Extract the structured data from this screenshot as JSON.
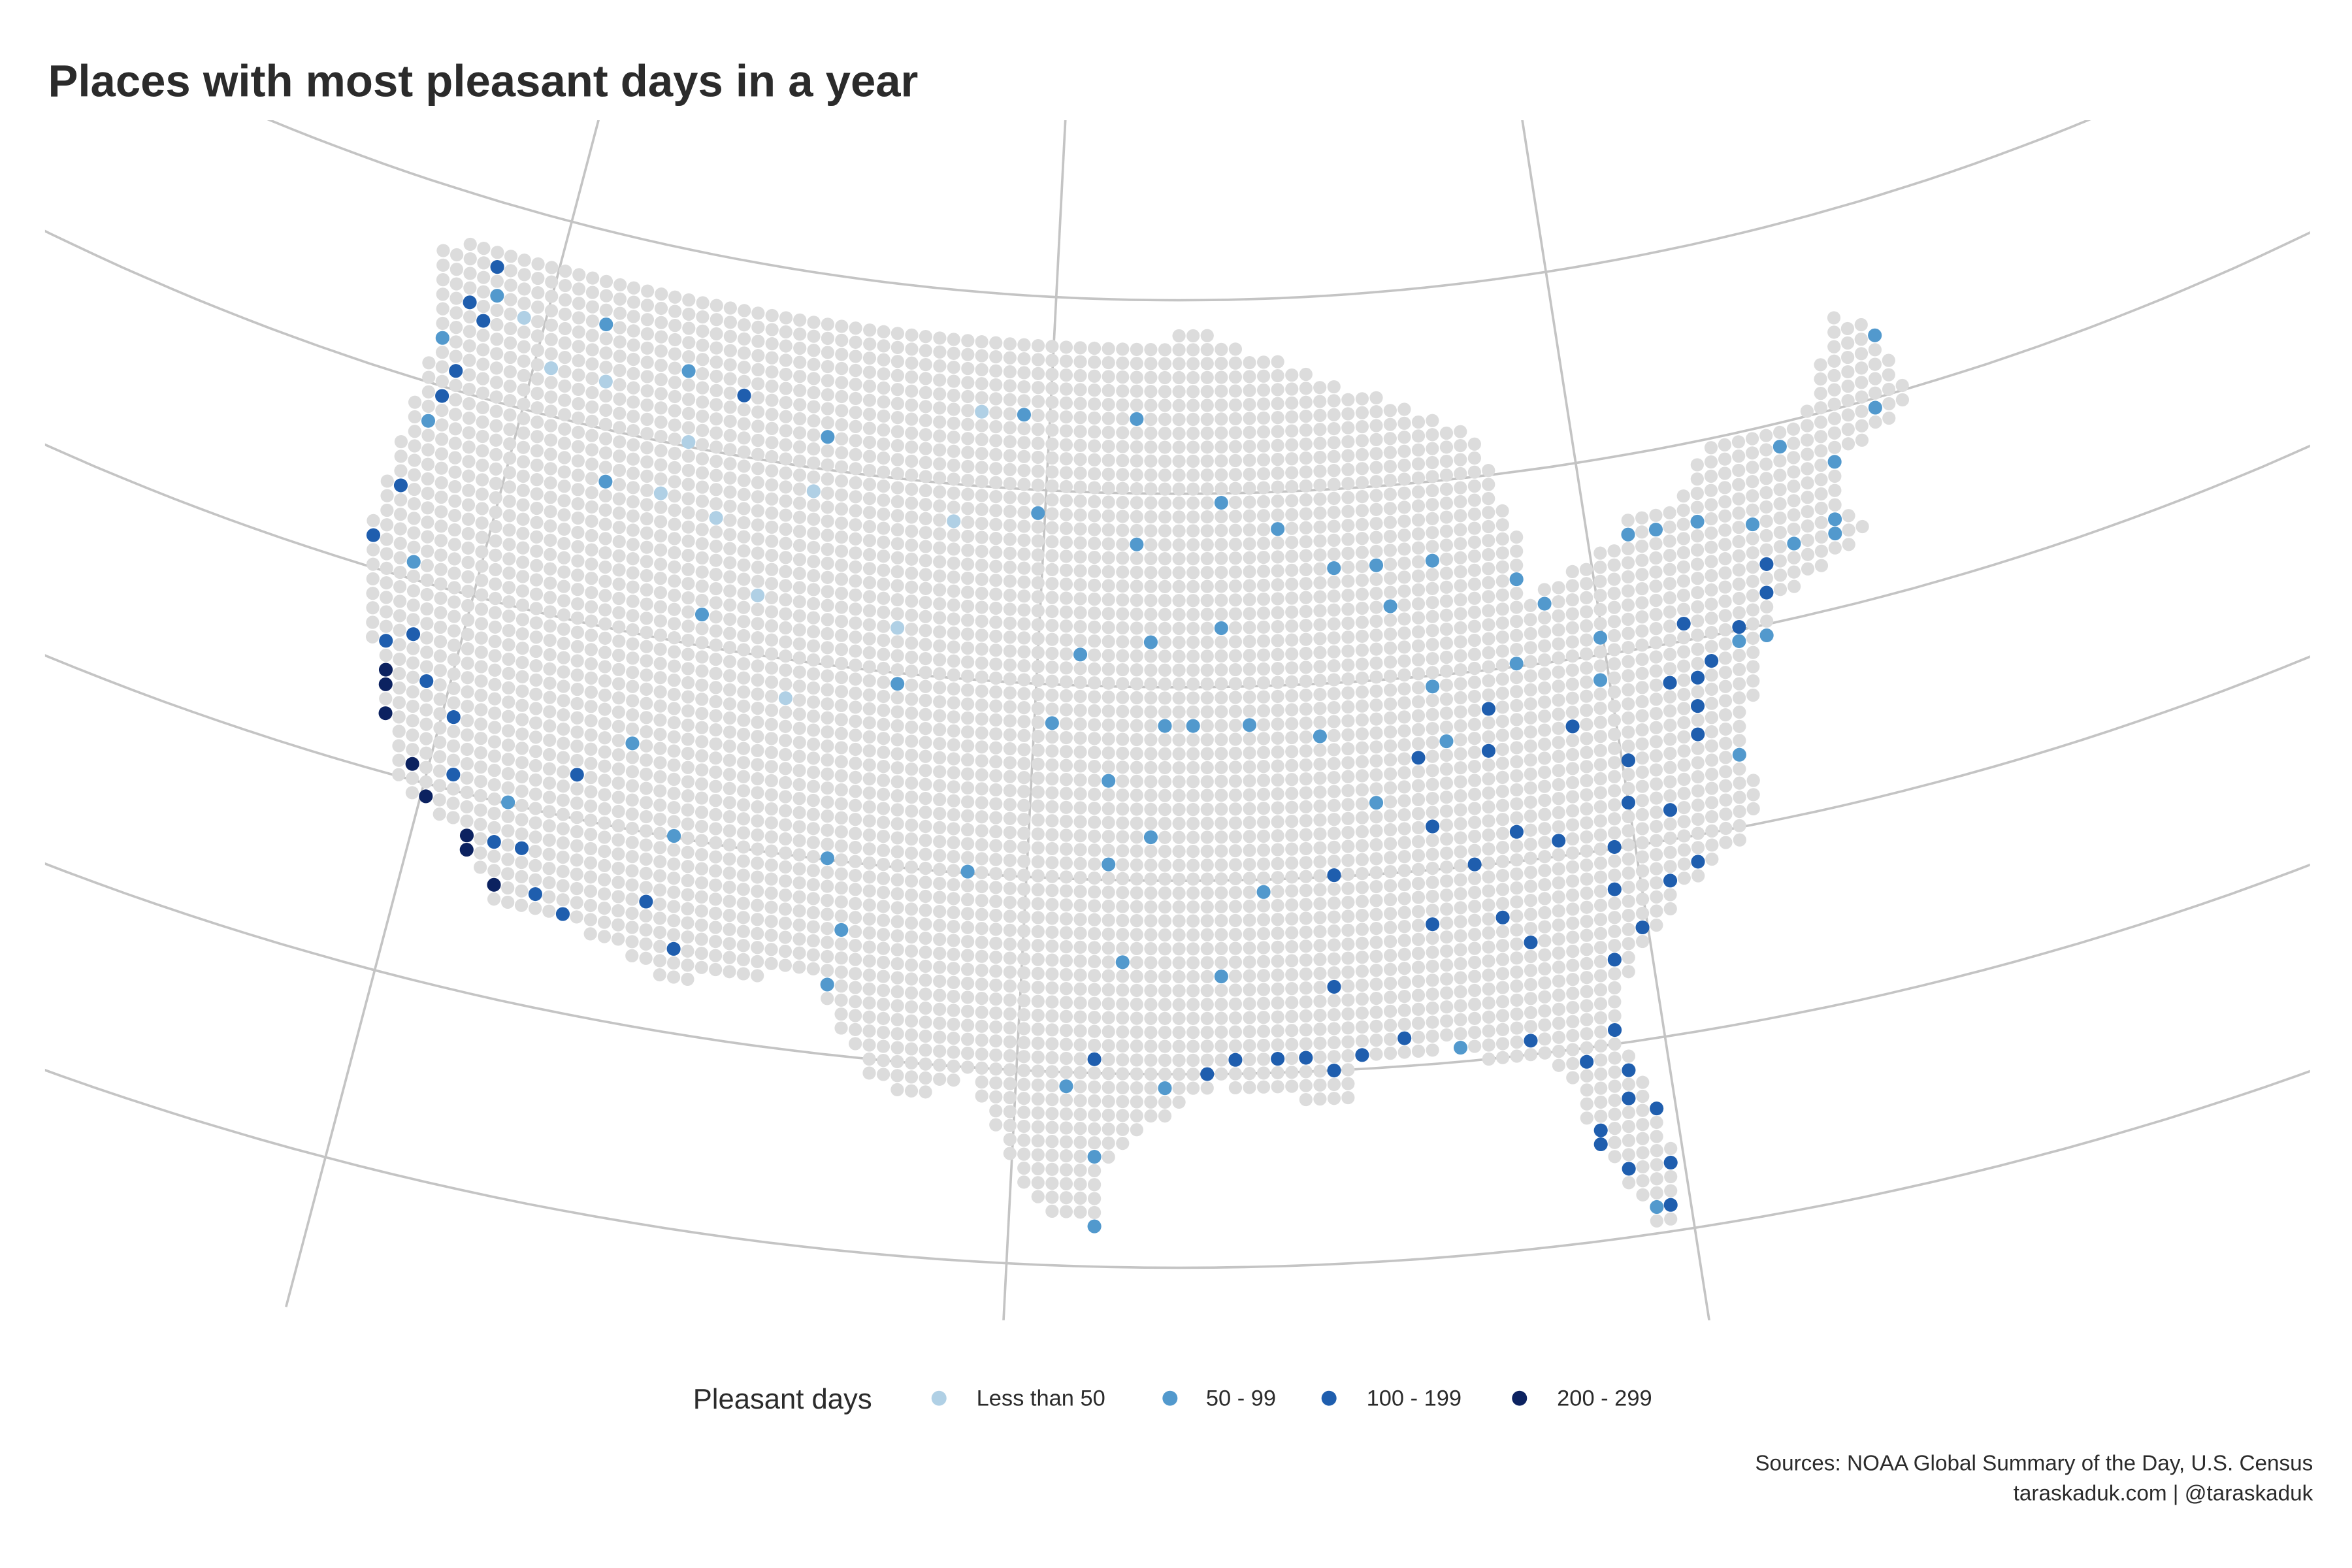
{
  "chart_data": {
    "type": "scatter",
    "title": "Places with most pleasant days in a year",
    "projection": "conic",
    "legend": {
      "title": "Pleasant days",
      "placement": "bottom",
      "categories": [
        {
          "label": "Less than 50",
          "color": "#b0d0e5"
        },
        {
          "label": "50 - 99",
          "color": "#5299cd"
        },
        {
          "label": "100 - 199",
          "color": "#1f5eae"
        },
        {
          "label": "200 - 299",
          "color": "#0c2260"
        }
      ]
    },
    "background_color": "#dcdcdc",
    "graticule": {
      "meridians": [
        -120,
        -100,
        -80
      ],
      "parallels": [
        25,
        30,
        35,
        40,
        45,
        50
      ]
    },
    "points_format": [
      "lon",
      "lat",
      "category_index"
    ],
    "points": [
      [
        -123.0,
        47.5,
        2
      ],
      [
        -122.3,
        47.6,
        1
      ],
      [
        -122.6,
        48.4,
        2
      ],
      [
        -122.3,
        46.8,
        2
      ],
      [
        -123.9,
        46.2,
        1
      ],
      [
        -122.7,
        45.5,
        2
      ],
      [
        -123.0,
        44.9,
        2
      ],
      [
        -123.1,
        44.0,
        1
      ],
      [
        -123.4,
        42.4,
        2
      ],
      [
        -124.1,
        40.8,
        2
      ],
      [
        -122.3,
        40.6,
        1
      ],
      [
        -121.5,
        38.6,
        2
      ],
      [
        -122.3,
        38.3,
        2
      ],
      [
        -122.4,
        37.7,
        3
      ],
      [
        -122.0,
        37.3,
        3
      ],
      [
        -121.9,
        36.6,
        3
      ],
      [
        -121.0,
        37.6,
        2
      ],
      [
        -119.8,
        36.8,
        2
      ],
      [
        -120.6,
        35.3,
        3
      ],
      [
        -119.7,
        34.4,
        3
      ],
      [
        -118.4,
        34.0,
        3
      ],
      [
        -118.1,
        34.1,
        3
      ],
      [
        -117.9,
        33.7,
        3
      ],
      [
        -117.2,
        32.8,
        3
      ],
      [
        -116.9,
        33.0,
        3
      ],
      [
        -117.3,
        34.1,
        2
      ],
      [
        -116.5,
        33.8,
        2
      ],
      [
        -115.6,
        32.8,
        2
      ],
      [
        -119.0,
        35.4,
        2
      ],
      [
        -117.0,
        35.0,
        1
      ],
      [
        -116.2,
        43.6,
        1
      ],
      [
        -114.0,
        46.9,
        1
      ],
      [
        -112.0,
        46.6,
        2
      ],
      [
        -111.9,
        40.8,
        1
      ],
      [
        -111.7,
        35.2,
        1
      ],
      [
        -112.0,
        33.4,
        2
      ],
      [
        -110.9,
        32.2,
        2
      ],
      [
        -114.6,
        32.7,
        2
      ],
      [
        -115.2,
        36.1,
        2
      ],
      [
        -106.6,
        35.1,
        1
      ],
      [
        -106.4,
        31.8,
        1
      ],
      [
        -104.8,
        39.7,
        1
      ],
      [
        -108.5,
        45.8,
        1
      ],
      [
        -104.8,
        41.1,
        0
      ],
      [
        -113.6,
        37.1,
        1
      ],
      [
        -117.4,
        47.7,
        1
      ],
      [
        -119.5,
        46.2,
        0
      ],
      [
        -110.0,
        41.5,
        0
      ],
      [
        -105.9,
        33.4,
        1
      ],
      [
        -103.2,
        44.1,
        0
      ],
      [
        -100.8,
        46.8,
        1
      ],
      [
        -96.8,
        46.9,
        1
      ],
      [
        -101.7,
        35.2,
        1
      ],
      [
        -97.5,
        35.4,
        1
      ],
      [
        -95.9,
        36.1,
        1
      ],
      [
        -97.4,
        27.8,
        1
      ],
      [
        -97.5,
        26.2,
        1
      ],
      [
        -98.5,
        29.5,
        1
      ],
      [
        -97.7,
        30.3,
        2
      ],
      [
        -96.8,
        32.8,
        1
      ],
      [
        -95.4,
        29.8,
        1
      ],
      [
        -94.0,
        30.1,
        2
      ],
      [
        -93.2,
        30.2,
        2
      ],
      [
        -92.0,
        30.2,
        2
      ],
      [
        -90.1,
        29.9,
        2
      ],
      [
        -91.1,
        30.5,
        2
      ],
      [
        -89.3,
        30.4,
        2
      ],
      [
        -88.0,
        30.7,
        2
      ],
      [
        -86.5,
        30.4,
        1
      ],
      [
        -84.3,
        30.4,
        2
      ],
      [
        -93.8,
        32.5,
        1
      ],
      [
        -92.2,
        34.7,
        1
      ],
      [
        -90.2,
        32.3,
        2
      ],
      [
        -86.8,
        33.5,
        2
      ],
      [
        -84.4,
        33.7,
        2
      ],
      [
        -83.6,
        32.8,
        2
      ],
      [
        -81.2,
        32.1,
        2
      ],
      [
        -80.0,
        32.8,
        2
      ],
      [
        -81.0,
        34.0,
        2
      ],
      [
        -79.0,
        33.8,
        2
      ],
      [
        -77.9,
        34.3,
        2
      ],
      [
        -80.3,
        25.8,
        2
      ],
      [
        -80.1,
        26.6,
        2
      ],
      [
        -81.8,
        26.6,
        2
      ],
      [
        -82.5,
        27.9,
        2
      ],
      [
        -81.3,
        28.5,
        2
      ],
      [
        -80.6,
        28.1,
        2
      ],
      [
        -82.3,
        29.6,
        2
      ],
      [
        -81.7,
        30.3,
        2
      ],
      [
        -81.4,
        25.6,
        1
      ],
      [
        -82.6,
        27.3,
        2
      ],
      [
        -81.0,
        29.2,
        2
      ],
      [
        -86.7,
        36.1,
        2
      ],
      [
        -85.3,
        35.0,
        2
      ],
      [
        -83.9,
        35.9,
        2
      ],
      [
        -82.5,
        35.4,
        2
      ],
      [
        -84.5,
        38.0,
        2
      ],
      [
        -85.7,
        38.2,
        1
      ],
      [
        -80.8,
        35.2,
        2
      ],
      [
        -79.9,
        36.1,
        2
      ],
      [
        -78.6,
        35.8,
        2
      ],
      [
        -77.4,
        37.5,
        2
      ],
      [
        -79.9,
        37.3,
        2
      ],
      [
        -76.3,
        36.9,
        1
      ],
      [
        -81.6,
        38.4,
        2
      ],
      [
        -80.2,
        39.2,
        1
      ],
      [
        -82.9,
        40.0,
        1
      ],
      [
        -84.5,
        39.1,
        2
      ],
      [
        -86.2,
        39.8,
        1
      ],
      [
        -87.6,
        41.8,
        1
      ],
      [
        -90.2,
        38.6,
        1
      ],
      [
        -94.6,
        39.1,
        1
      ],
      [
        -93.6,
        41.6,
        1
      ],
      [
        -93.2,
        44.9,
        1
      ],
      [
        -89.4,
        43.1,
        1
      ],
      [
        -88.0,
        43.0,
        1
      ],
      [
        -85.6,
        42.9,
        1
      ],
      [
        -83.0,
        42.3,
        1
      ],
      [
        -81.7,
        41.5,
        1
      ],
      [
        -80.0,
        40.4,
        1
      ],
      [
        -77.0,
        38.9,
        2
      ],
      [
        -76.6,
        39.3,
        2
      ],
      [
        -75.2,
        40.0,
        2
      ],
      [
        -74.2,
        40.7,
        2
      ],
      [
        -73.8,
        40.7,
        2
      ],
      [
        -73.9,
        41.7,
        2
      ],
      [
        -72.7,
        41.9,
        1
      ],
      [
        -71.4,
        41.8,
        1
      ],
      [
        -71.0,
        42.4,
        1
      ],
      [
        -73.8,
        42.7,
        1
      ],
      [
        -76.1,
        43.1,
        1
      ],
      [
        -77.6,
        43.1,
        1
      ],
      [
        -78.7,
        42.9,
        1
      ],
      [
        -72.5,
        44.5,
        1
      ],
      [
        -70.3,
        43.6,
        1
      ],
      [
        -68.8,
        44.8,
        1
      ],
      [
        -68.0,
        46.7,
        1
      ],
      [
        -75.5,
        39.7,
        1
      ],
      [
        -76.9,
        40.3,
        2
      ],
      [
        -77.3,
        38.4,
        2
      ],
      [
        -78.0,
        39.0,
        2
      ],
      [
        -74.5,
        39.4,
        1
      ],
      [
        -97.4,
        37.7,
        1
      ],
      [
        -96.0,
        41.3,
        1
      ],
      [
        -98.5,
        40.9,
        1
      ],
      [
        -99.3,
        38.9,
        1
      ],
      [
        -95.7,
        39.0,
        1
      ],
      [
        -92.4,
        38.9,
        1
      ],
      [
        -90.0,
        35.1,
        2
      ],
      [
        -88.6,
        37.0,
        1
      ],
      [
        -87.0,
        37.9,
        2
      ],
      [
        -91.5,
        43.9,
        1
      ],
      [
        -96.7,
        43.6,
        1
      ],
      [
        -100.3,
        44.4,
        1
      ],
      [
        -102.8,
        46.9,
        0
      ],
      [
        -117.0,
        46.4,
        0
      ],
      [
        -114.3,
        43.5,
        0
      ],
      [
        -111.9,
        43.5,
        0
      ],
      [
        -108.7,
        44.5,
        0
      ],
      [
        -108.5,
        39.1,
        0
      ],
      [
        -120.7,
        47.4,
        0
      ],
      [
        -113.5,
        45.2,
        0
      ]
    ]
  },
  "footer": {
    "source_line": "Sources: NOAA Global Summary of the Day, U.S. Census",
    "credit_line": "taraskaduk.com | @taraskaduk"
  }
}
